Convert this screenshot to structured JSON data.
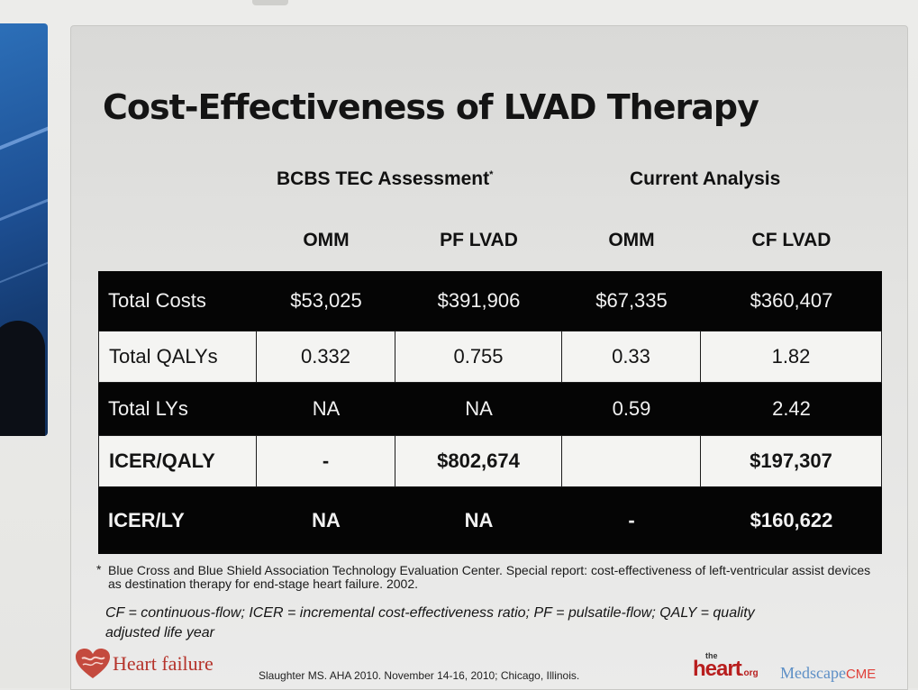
{
  "slide": {
    "title": "Cost-Effectiveness of LVAD Therapy",
    "groups": {
      "bcbs": "BCBS TEC Assessment",
      "bcbs_marker": "*",
      "current": "Current Analysis"
    },
    "columns": [
      "OMM",
      "PF LVAD",
      "OMM",
      "CF LVAD"
    ],
    "rows": [
      {
        "label": "Total Costs",
        "values": [
          "$53,025",
          "$391,906",
          "$67,335",
          "$360,407"
        ]
      },
      {
        "label": "Total QALYs",
        "values": [
          "0.332",
          "0.755",
          "0.33",
          "1.82"
        ]
      },
      {
        "label": "Total LYs",
        "values": [
          "NA",
          "NA",
          "0.59",
          "2.42"
        ]
      },
      {
        "label": "ICER/QALY",
        "values": [
          "-",
          "$802,674",
          "",
          "$197,307"
        ]
      },
      {
        "label": "ICER/LY",
        "values": [
          "NA",
          "NA",
          "-",
          "$160,622"
        ]
      }
    ],
    "footnote": {
      "marker": "*",
      "text": "Blue Cross and Blue Shield Association Technology Evaluation Center. Special report: cost-effectiveness of left-ventricular assist devices as destination therapy for end-stage heart failure. 2002."
    },
    "abbreviations": "CF = continuous-flow; ICER = incremental cost-effectiveness ratio; PF = pulsatile-flow; QALY = quality adjusted life year",
    "footer": {
      "logo_text": "Heart failure",
      "citation": "Slaughter MS. AHA 2010. November 14-16, 2010; Chicago, Illinois.",
      "brand_heart_the": "the",
      "brand_heart": "heart",
      "brand_heart_org": ".org",
      "brand_medscape": "Medscape",
      "brand_medscape_cme": "CME"
    }
  },
  "colors": {
    "dark_row": "#050505",
    "light_row": "#f4f4f2",
    "heart_red": "#b5332b",
    "medscape_blue": "#5d8fc6"
  }
}
